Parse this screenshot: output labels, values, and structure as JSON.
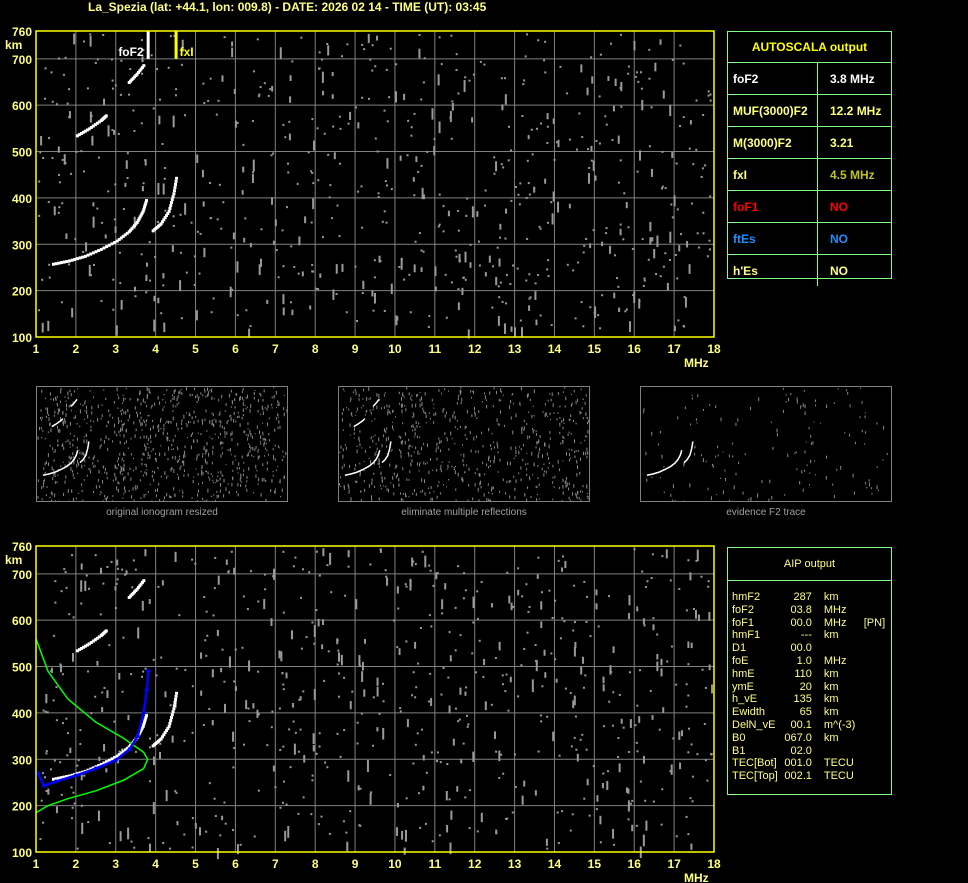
{
  "header": {
    "title": "La_Spezia (lat: +44.1, lon: 009.8) - DATE: 2026 02 14 - TIME (UT): 03:45"
  },
  "autoscala": {
    "title": "AUTOSCALA output",
    "rows": [
      {
        "label": "foF2",
        "value": "3.8 MHz",
        "label_color": "#ffffff",
        "value_color": "#ffffff"
      },
      {
        "label": "MUF(3000)F2",
        "value": "12.2 MHz",
        "label_color": "#ffff80",
        "value_color": "#ffff80"
      },
      {
        "label": "M(3000)F2",
        "value": "3.21",
        "label_color": "#ffff80",
        "value_color": "#ffff80"
      },
      {
        "label": "fxI",
        "value": "4.5 MHz",
        "label_color": "#ffff80",
        "value_color": "#c0c020"
      },
      {
        "label": "foF1",
        "value": "NO",
        "label_color": "#ff0000",
        "value_color": "#ff0000"
      },
      {
        "label": "ftEs",
        "value": "NO",
        "label_color": "#1e90ff",
        "value_color": "#1e90ff"
      },
      {
        "label": "h'Es",
        "value": "NO",
        "label_color": "#ffff80",
        "value_color": "#ffff80"
      }
    ]
  },
  "aip": {
    "title": "AIP output",
    "rows": [
      [
        "hmF2",
        "287",
        "km",
        ""
      ],
      [
        "foF2",
        "03.8",
        "MHz",
        ""
      ],
      [
        "foF1",
        "00.0",
        "MHz",
        "[PN]"
      ],
      [
        "hmF1",
        "---",
        "km",
        ""
      ],
      [
        "D1",
        "00.0",
        "",
        ""
      ],
      [
        "foE",
        "1.0",
        "MHz",
        ""
      ],
      [
        "hmE",
        "110",
        "km",
        ""
      ],
      [
        "ymE",
        "20",
        "km",
        ""
      ],
      [
        "h_vE",
        "135",
        "km",
        ""
      ],
      [
        "Ewidth",
        "65",
        "km",
        ""
      ],
      [
        "DelN_vE",
        "00.1",
        "m^(-3)",
        ""
      ],
      [
        "B0",
        "067.0",
        "km",
        ""
      ],
      [
        "B1",
        "02.0",
        "",
        ""
      ],
      [
        "TEC[Bot]",
        "001.0",
        "TECU",
        ""
      ],
      [
        "TEC[Top]",
        "002.1",
        "TECU",
        ""
      ]
    ]
  },
  "thumbnails": {
    "captions": [
      "original ionogram resized",
      "eliminate multiple reflections",
      "evidence F2 trace"
    ]
  },
  "chart_data": [
    {
      "type": "scatter",
      "xlabel": "MHz",
      "ylabel": "km",
      "xlim": [
        1,
        18
      ],
      "ylim": [
        100,
        760
      ],
      "xticks": [
        1,
        2,
        3,
        4,
        5,
        6,
        7,
        8,
        9,
        10,
        11,
        12,
        13,
        14,
        15,
        16,
        17,
        18
      ],
      "yticks": [
        100,
        200,
        300,
        400,
        500,
        600,
        700,
        760
      ],
      "grid": true,
      "markers": [
        {
          "label": "foF2",
          "x": 3.8,
          "color": "#ffffff"
        },
        {
          "label": "fxI",
          "x": 4.5,
          "color": "#ffff00"
        }
      ],
      "traces": [
        {
          "color": "#ffffff",
          "points": [
            [
              1.4,
              258
            ],
            [
              1.8,
              265
            ],
            [
              2.2,
              275
            ],
            [
              2.6,
              290
            ],
            [
              3.0,
              308
            ],
            [
              3.3,
              328
            ],
            [
              3.5,
              348
            ],
            [
              3.65,
              372
            ],
            [
              3.75,
              400
            ]
          ]
        },
        {
          "color": "#ffffff",
          "points": [
            [
              3.9,
              330
            ],
            [
              4.1,
              345
            ],
            [
              4.3,
              372
            ],
            [
              4.42,
              410
            ],
            [
              4.5,
              450
            ]
          ]
        },
        {
          "color": "#ffffff",
          "points": [
            [
              2.0,
              535
            ],
            [
              2.3,
              550
            ],
            [
              2.6,
              568
            ],
            [
              2.75,
              580
            ]
          ]
        },
        {
          "color": "#ffffff",
          "points": [
            [
              3.3,
              650
            ],
            [
              3.5,
              668
            ],
            [
              3.7,
              690
            ]
          ]
        }
      ]
    },
    {
      "type": "scatter",
      "xlabel": "MHz",
      "ylabel": "km",
      "xlim": [
        1,
        18
      ],
      "ylim": [
        100,
        760
      ],
      "xticks": [
        1,
        2,
        3,
        4,
        5,
        6,
        7,
        8,
        9,
        10,
        11,
        12,
        13,
        14,
        15,
        16,
        17,
        18
      ],
      "yticks": [
        100,
        200,
        300,
        400,
        500,
        600,
        700,
        760
      ],
      "grid": true,
      "traces": [
        {
          "color": "#ffffff",
          "points": [
            [
              1.4,
              258
            ],
            [
              1.8,
              265
            ],
            [
              2.2,
              275
            ],
            [
              2.6,
              290
            ],
            [
              3.0,
              308
            ],
            [
              3.3,
              328
            ],
            [
              3.5,
              348
            ],
            [
              3.65,
              372
            ],
            [
              3.75,
              400
            ]
          ]
        },
        {
          "color": "#ffffff",
          "points": [
            [
              3.9,
              330
            ],
            [
              4.1,
              345
            ],
            [
              4.3,
              372
            ],
            [
              4.42,
              410
            ],
            [
              4.5,
              450
            ]
          ]
        },
        {
          "color": "#ffffff",
          "points": [
            [
              2.0,
              535
            ],
            [
              2.3,
              550
            ],
            [
              2.6,
              568
            ],
            [
              2.75,
              580
            ]
          ]
        },
        {
          "color": "#ffffff",
          "points": [
            [
              3.3,
              650
            ],
            [
              3.5,
              668
            ],
            [
              3.7,
              690
            ]
          ]
        }
      ],
      "profile": {
        "color": "#00ff00",
        "points": [
          [
            1.0,
            560
          ],
          [
            1.3,
            490
          ],
          [
            1.8,
            430
          ],
          [
            2.5,
            380
          ],
          [
            3.2,
            345
          ],
          [
            3.7,
            315
          ],
          [
            3.8,
            300
          ],
          [
            3.7,
            280
          ],
          [
            3.2,
            255
          ],
          [
            2.5,
            232
          ],
          [
            1.8,
            215
          ],
          [
            1.3,
            200
          ],
          [
            1.0,
            185
          ]
        ]
      },
      "fitted_trace": {
        "color": "#0000ff",
        "points": [
          [
            1.05,
            270
          ],
          [
            1.2,
            243
          ],
          [
            1.5,
            252
          ],
          [
            2.0,
            265
          ],
          [
            2.5,
            280
          ],
          [
            3.0,
            298
          ],
          [
            3.35,
            322
          ],
          [
            3.55,
            350
          ],
          [
            3.7,
            400
          ],
          [
            3.78,
            450
          ],
          [
            3.82,
            490
          ]
        ]
      }
    }
  ]
}
